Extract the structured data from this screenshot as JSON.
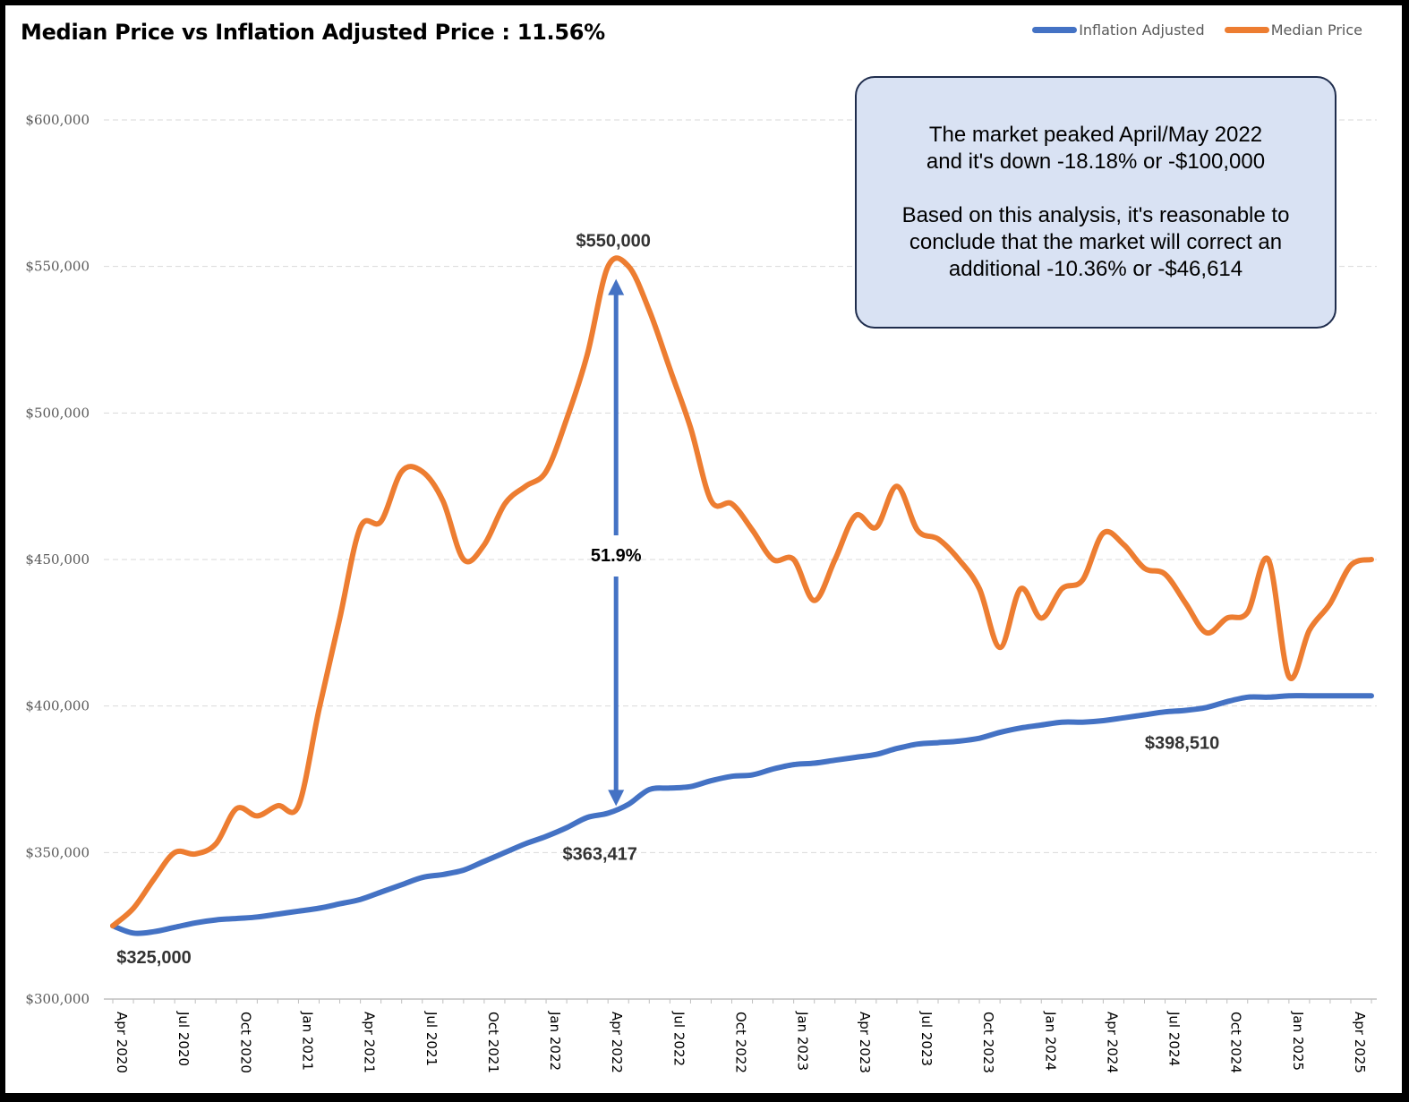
{
  "chart_data": {
    "type": "line",
    "title": "Median Price vs Inflation Adjusted Price :  11.56%",
    "xlabel": "",
    "ylabel": "",
    "ylim": [
      300000,
      600000
    ],
    "y_ticks": [
      "$300,000",
      "$350,000",
      "$400,000",
      "$450,000",
      "$500,000",
      "$550,000",
      "$600,000"
    ],
    "x_ticks": [
      "Apr 2020",
      "Jul 2020",
      "Oct 2020",
      "Jan 2021",
      "Apr 2021",
      "Jul 2021",
      "Oct 2021",
      "Jan 2022",
      "Apr 2022",
      "Jul 2022",
      "Oct 2022",
      "Jan 2023",
      "Apr 2023",
      "Jul 2023",
      "Oct 2023",
      "Jan 2024",
      "Apr 2024",
      "Jul 2024",
      "Oct 2024",
      "Jan 2025",
      "Apr 2025"
    ],
    "x": [
      "Apr 2020",
      "May 2020",
      "Jun 2020",
      "Jul 2020",
      "Aug 2020",
      "Sep 2020",
      "Oct 2020",
      "Nov 2020",
      "Dec 2020",
      "Jan 2021",
      "Feb 2021",
      "Mar 2021",
      "Apr 2021",
      "May 2021",
      "Jun 2021",
      "Jul 2021",
      "Aug 2021",
      "Sep 2021",
      "Oct 2021",
      "Nov 2021",
      "Dec 2021",
      "Jan 2022",
      "Feb 2022",
      "Mar 2022",
      "Apr 2022",
      "May 2022",
      "Jun 2022",
      "Jul 2022",
      "Aug 2022",
      "Sep 2022",
      "Oct 2022",
      "Nov 2022",
      "Dec 2022",
      "Jan 2023",
      "Feb 2023",
      "Mar 2023",
      "Apr 2023",
      "May 2023",
      "Jun 2023",
      "Jul 2023",
      "Aug 2023",
      "Sep 2023",
      "Oct 2023",
      "Nov 2023",
      "Dec 2023",
      "Jan 2024",
      "Feb 2024",
      "Mar 2024",
      "Apr 2024",
      "May 2024",
      "Jun 2024",
      "Jul 2024",
      "Aug 2024",
      "Sep 2024",
      "Oct 2024",
      "Nov 2024",
      "Dec 2024",
      "Jan 2025",
      "Feb 2025",
      "Mar 2025",
      "Apr 2025",
      "May 2025"
    ],
    "grid": true,
    "legend_position": "top-right",
    "series": [
      {
        "name": "Inflation Adjusted",
        "color": "#4472c4",
        "values": [
          325000,
          322500,
          323000,
          324500,
          326000,
          327000,
          327500,
          328000,
          329000,
          330000,
          331000,
          332500,
          334000,
          336500,
          339000,
          341500,
          342500,
          344000,
          347000,
          350000,
          353000,
          355500,
          358500,
          362000,
          363417,
          366500,
          371500,
          372000,
          372500,
          374500,
          376000,
          376500,
          378500,
          380000,
          380500,
          381500,
          382500,
          383500,
          385500,
          387000,
          387500,
          388000,
          389000,
          391000,
          392500,
          393500,
          394500,
          394500,
          395000,
          396000,
          397000,
          398000,
          398510,
          399500,
          401500,
          403000,
          403000,
          403500,
          403500,
          403500,
          403500,
          403500
        ]
      },
      {
        "name": "Median Price",
        "color": "#ed7d31",
        "values": [
          325000,
          331000,
          341000,
          350000,
          349500,
          353000,
          365000,
          362500,
          366000,
          366000,
          399000,
          430000,
          461000,
          463000,
          480000,
          480000,
          470000,
          450000,
          455000,
          469000,
          475000,
          480000,
          498000,
          520000,
          550000,
          550000,
          535000,
          515000,
          495000,
          470000,
          469000,
          460000,
          450000,
          450000,
          436000,
          450000,
          465000,
          461000,
          475000,
          460000,
          457000,
          450000,
          440000,
          420000,
          440000,
          430000,
          440000,
          443000,
          459000,
          455000,
          447000,
          445000,
          435000,
          425000,
          430000,
          432000,
          450000,
          410000,
          426000,
          435000,
          448000,
          450000
        ]
      }
    ],
    "annotations": {
      "peak_label": "$550,000",
      "peak_inflation_label": "$363,417",
      "start_label": "$325,000",
      "end_inflation_label": "$398,510",
      "gap_label": "51.9%"
    }
  },
  "info_box": {
    "line1": "The market peaked April/May 2022",
    "line2": "and it's down -18.18% or -$100,000",
    "line3": "Based on this analysis, it's reasonable to",
    "line4": "conclude that the market will correct an",
    "line5": "additional -10.36% or -$46,614"
  }
}
